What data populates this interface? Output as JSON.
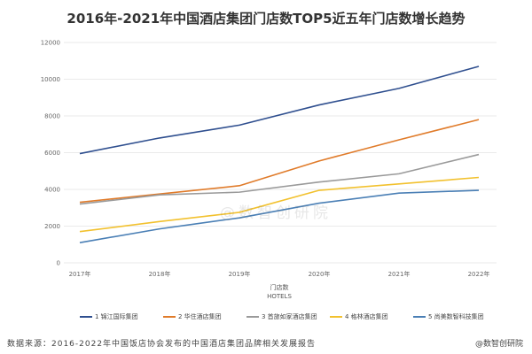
{
  "title": "2016年-2021年中国酒店集团门店数TOP5近五年门店数增长趋势",
  "watermark": "@数智创研院",
  "footer": {
    "source": "数据来源：2016-2022年中国饭店协会发布的中国酒店集团品牌相关发展报告",
    "credit": "@数智创研院"
  },
  "chart_data": {
    "type": "line",
    "title": "2016年-2021年中国酒店集团门店数TOP5近五年门店数增长趋势",
    "xlabel": "门店数",
    "xlabel_sub": "HOTELS",
    "ylabel": "",
    "ylim": [
      0,
      12000
    ],
    "yticks": [
      0,
      2000,
      4000,
      6000,
      8000,
      10000,
      12000
    ],
    "categories": [
      "2017年",
      "2018年",
      "2019年",
      "2020年",
      "2021年",
      "2022年"
    ],
    "grid": true,
    "legend_position": "bottom",
    "series": [
      {
        "name": "1 锦江国际集团",
        "color": "#2f4f8f",
        "values": [
          5950,
          6800,
          7500,
          8600,
          9500,
          10700
        ]
      },
      {
        "name": "2 华住酒店集团",
        "color": "#e07b2a",
        "values": [
          3300,
          3750,
          4200,
          5550,
          6700,
          7800
        ]
      },
      {
        "name": "3 首旅如家酒店集团",
        "color": "#9a9a9a",
        "values": [
          3200,
          3700,
          3850,
          4400,
          4850,
          5900
        ]
      },
      {
        "name": "4 格林酒店集团",
        "color": "#f2c12e",
        "values": [
          1700,
          2250,
          2750,
          3950,
          4300,
          4650
        ]
      },
      {
        "name": "5 尚美数智科技集团",
        "color": "#4a7fb5",
        "values": [
          1100,
          1850,
          2450,
          3250,
          3800,
          3950
        ]
      }
    ]
  }
}
